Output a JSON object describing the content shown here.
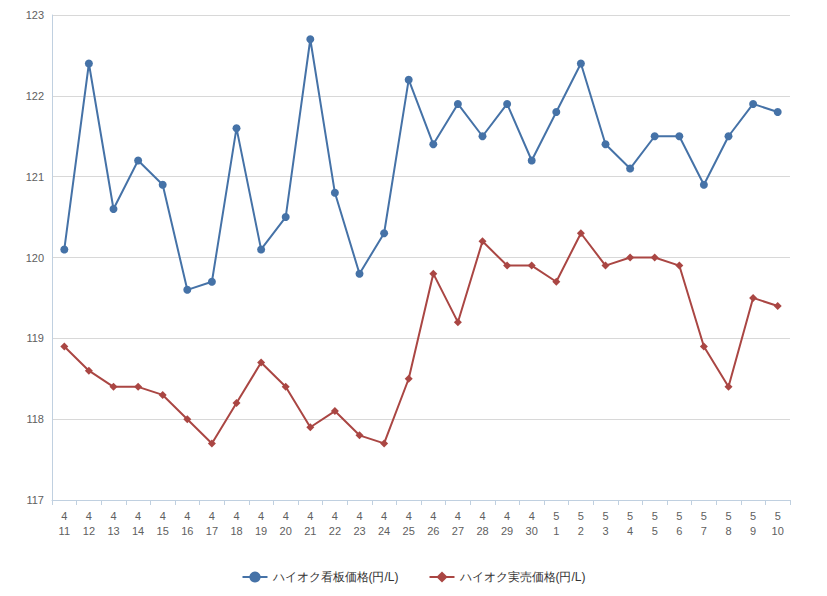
{
  "chart_data": {
    "type": "line",
    "categories": [
      "4\n11",
      "4\n12",
      "4\n13",
      "4\n14",
      "4\n15",
      "4\n16",
      "4\n17",
      "4\n18",
      "4\n19",
      "4\n20",
      "4\n21",
      "4\n22",
      "4\n23",
      "4\n24",
      "4\n25",
      "4\n26",
      "4\n27",
      "4\n28",
      "4\n29",
      "4\n30",
      "5\n1",
      "5\n2",
      "5\n3",
      "5\n4",
      "5\n5",
      "5\n6",
      "5\n7",
      "5\n8",
      "5\n9",
      "5\n10"
    ],
    "series": [
      {
        "name": "ハイオク看板価格(円/L)",
        "color": "#4572a7",
        "marker": "circle",
        "values": [
          120.1,
          122.4,
          120.6,
          121.2,
          120.9,
          119.6,
          119.7,
          121.6,
          120.1,
          120.5,
          122.7,
          120.8,
          119.8,
          120.3,
          122.2,
          121.4,
          121.9,
          121.5,
          121.9,
          121.2,
          121.8,
          122.4,
          121.4,
          121.1,
          121.5,
          121.5,
          120.9,
          121.5,
          121.9,
          121.8
        ]
      },
      {
        "name": "ハイオク実売価格(円/L)",
        "color": "#aa4643",
        "marker": "diamond",
        "values": [
          118.9,
          118.6,
          118.4,
          118.4,
          118.3,
          118.0,
          117.7,
          118.2,
          118.7,
          118.4,
          117.9,
          118.1,
          117.8,
          117.7,
          118.5,
          119.8,
          119.2,
          120.2,
          119.9,
          119.9,
          119.7,
          120.3,
          119.9,
          120.0,
          120.0,
          119.9,
          118.9,
          118.4,
          119.5,
          119.4
        ]
      }
    ],
    "ylim": [
      117,
      123
    ],
    "yticks": [
      117,
      118,
      119,
      120,
      121,
      122,
      123
    ],
    "grid": true,
    "legend": "bottom"
  }
}
